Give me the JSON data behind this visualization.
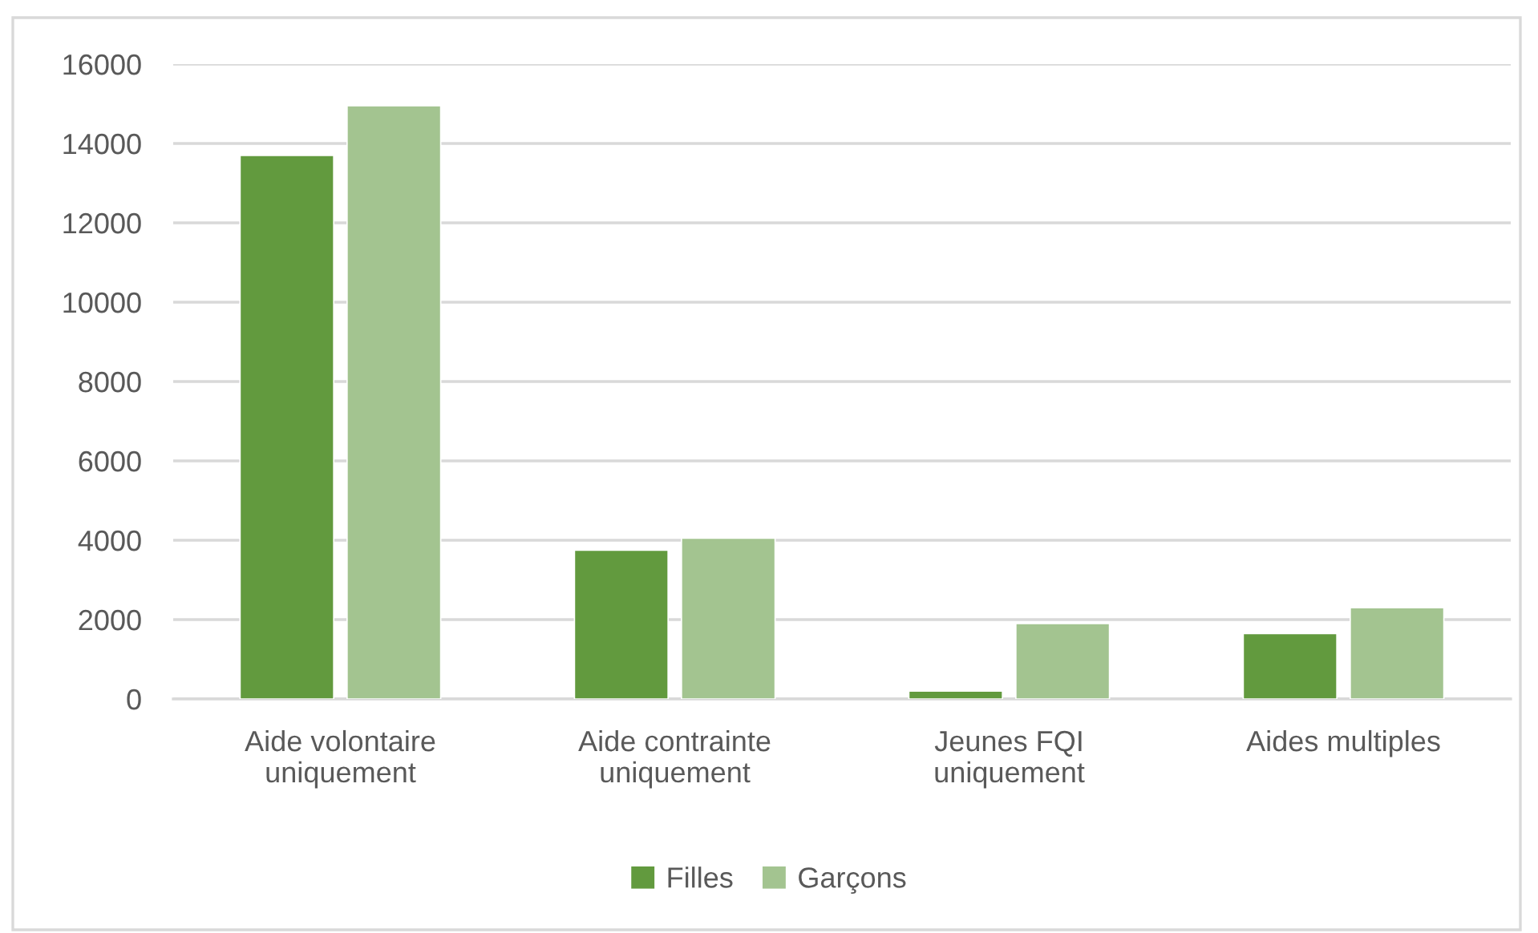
{
  "chart_data": {
    "type": "bar",
    "categories": [
      "Aide volontaire\nuniquement",
      "Aide contrainte\nuniquement",
      "Jeunes FQI\nuniquement",
      "Aides multiples"
    ],
    "series": [
      {
        "name": "Filles",
        "color": "#629a3e",
        "values": [
          13700,
          3750,
          200,
          1650
        ]
      },
      {
        "name": "Garçons",
        "color": "#a3c490",
        "values": [
          14950,
          4050,
          1900,
          2300
        ]
      }
    ],
    "ylim": [
      0,
      16000
    ],
    "yticks": [
      0,
      2000,
      4000,
      6000,
      8000,
      10000,
      12000,
      14000,
      16000
    ],
    "grid": "y",
    "legend": "bottom"
  }
}
